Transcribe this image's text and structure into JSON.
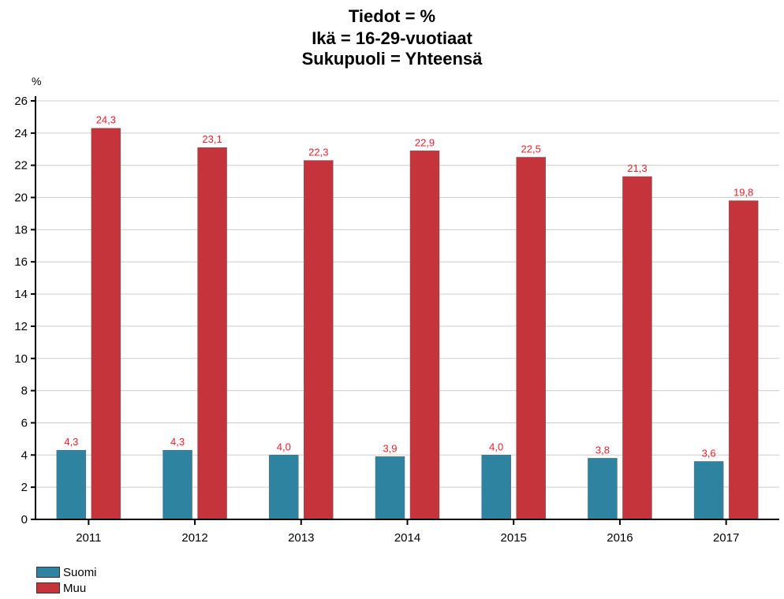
{
  "chart_data": {
    "type": "bar",
    "title_lines": [
      "Tiedot = %",
      "Ikä = 16-29-vuotiaat",
      "Sukupuoli = Yhteensä"
    ],
    "ylabel": "%",
    "xlabel": "",
    "ylim": [
      0,
      26
    ],
    "y_ticks": [
      0,
      2,
      4,
      6,
      8,
      10,
      12,
      14,
      16,
      18,
      20,
      22,
      24,
      26
    ],
    "grid": true,
    "legend_position": "bottom-left",
    "categories": [
      "2011",
      "2012",
      "2013",
      "2014",
      "2015",
      "2016",
      "2017"
    ],
    "series": [
      {
        "name": "Suomi",
        "color": "#2d83a0",
        "label_color": "#e8202a",
        "values": [
          4.3,
          4.3,
          4.0,
          3.9,
          4.0,
          3.8,
          3.6
        ],
        "labels": [
          "4,3",
          "4,3",
          "4,0",
          "3,9",
          "4,0",
          "3,8",
          "3,6"
        ]
      },
      {
        "name": "Muu",
        "color": "#c4343a",
        "label_color": "#e8202a",
        "values": [
          24.3,
          23.1,
          22.3,
          22.9,
          22.5,
          21.3,
          19.8
        ],
        "labels": [
          "24,3",
          "23,1",
          "22,3",
          "22,9",
          "22,5",
          "21,3",
          "19,8"
        ]
      }
    ]
  }
}
